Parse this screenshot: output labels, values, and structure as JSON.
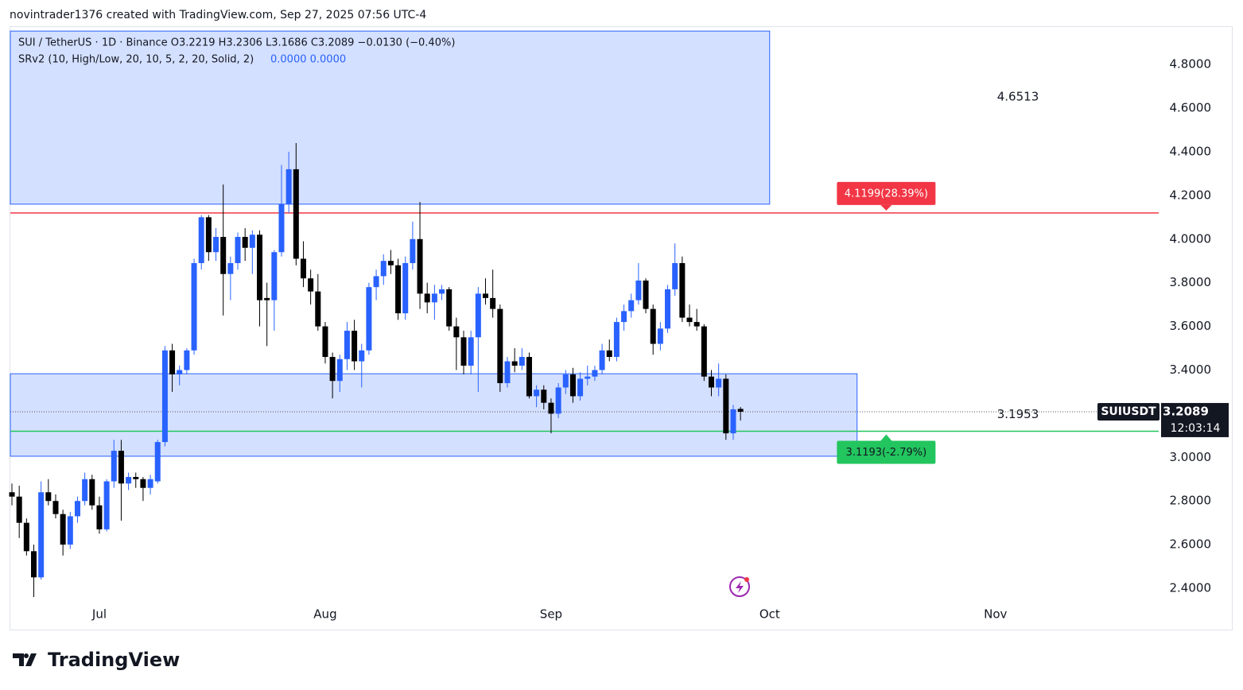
{
  "header": "novintrader1376 created with TradingView.com, Sep 27, 2025 07:56 UTC-4",
  "footer": "TradingView",
  "chart_data": {
    "type": "candlestick",
    "legend_line1": "SUI / TetherUS · 1D · Binance  O3.2219  H3.2306  L3.1686  C3.2089  −0.0130 (−0.40%)",
    "legend_line2": "SRv2 (10, High/Low, 20, 10, 5, 2, 20, Solid, 2)",
    "legend_values": "0.0000  0.0000",
    "xlim": [
      -0.22,
      157.4
    ],
    "xticks": [
      {
        "value": 12,
        "label": "Jul"
      },
      {
        "value": 43,
        "label": "Aug"
      },
      {
        "value": 74,
        "label": "Sep"
      },
      {
        "value": 104,
        "label": "Oct"
      },
      {
        "value": 135,
        "label": "Nov"
      }
    ],
    "ylim": [
      2.218,
      4.968
    ],
    "yticks": [
      {
        "value": 2.4,
        "label": "2.4000"
      },
      {
        "value": 2.6,
        "label": "2.6000"
      },
      {
        "value": 2.8,
        "label": "2.8000"
      },
      {
        "value": 3.0,
        "label": "3.0000"
      },
      {
        "value": 3.2,
        "label": "3.2000"
      },
      {
        "value": 3.4,
        "label": "3.4000"
      },
      {
        "value": 3.6,
        "label": "3.6000"
      },
      {
        "value": 3.8,
        "label": "3.8000"
      },
      {
        "value": 4.0,
        "label": "4.0000"
      },
      {
        "value": 4.2,
        "label": "4.2000"
      },
      {
        "value": 4.4,
        "label": "4.4000"
      },
      {
        "value": 4.6,
        "label": "4.6000"
      },
      {
        "value": 4.8,
        "label": "4.8000"
      }
    ],
    "up_color": "#2962ff",
    "down_color": "#000000",
    "open": [
      2.84,
      2.82,
      2.7,
      2.57,
      2.45,
      2.84,
      2.8,
      2.74,
      2.6,
      2.73,
      2.8,
      2.9,
      2.78,
      2.67,
      2.89,
      3.03,
      2.88,
      2.91,
      2.9,
      2.86,
      2.89,
      3.07,
      3.49,
      3.38,
      3.4,
      3.49,
      3.89,
      4.1,
      3.94,
      4.01,
      3.84,
      3.89,
      4.01,
      3.96,
      4.02,
      3.73,
      3.72,
      3.94,
      4.16,
      4.32,
      3.91,
      3.82,
      3.76,
      3.6,
      3.46,
      3.35,
      3.45,
      3.58,
      3.44,
      3.49,
      3.78,
      3.83,
      3.9,
      3.88,
      3.66,
      3.89,
      4.0,
      3.75,
      3.71,
      3.75,
      3.77,
      3.6,
      3.55,
      3.42,
      3.55,
      3.75,
      3.73,
      3.68,
      3.34,
      3.44,
      3.42,
      3.46,
      3.28,
      3.31,
      3.25,
      3.2,
      3.32,
      3.38,
      3.28,
      3.36,
      3.37,
      3.4,
      3.49,
      3.46,
      3.62,
      3.67,
      3.72,
      3.81,
      3.68,
      3.52,
      3.59,
      3.77,
      3.89,
      3.64,
      3.62,
      3.6,
      3.37,
      3.32,
      3.36,
      3.11,
      3.2219
    ],
    "high": [
      2.88,
      2.87,
      2.72,
      2.6,
      2.89,
      2.9,
      2.83,
      2.76,
      2.75,
      2.82,
      2.93,
      2.92,
      2.82,
      2.9,
      3.08,
      3.08,
      2.93,
      2.93,
      2.91,
      2.92,
      3.08,
      3.51,
      3.52,
      3.42,
      3.5,
      3.91,
      4.11,
      4.11,
      4.05,
      4.25,
      3.92,
      4.03,
      4.05,
      4.04,
      4.04,
      3.8,
      3.95,
      4.34,
      4.4,
      4.44,
      3.99,
      3.86,
      3.84,
      3.62,
      3.48,
      3.47,
      3.62,
      3.63,
      3.52,
      3.8,
      3.86,
      3.93,
      3.95,
      3.91,
      3.92,
      4.08,
      4.17,
      3.8,
      3.79,
      3.79,
      3.78,
      3.64,
      3.58,
      3.58,
      3.78,
      3.82,
      3.86,
      3.7,
      3.46,
      3.5,
      3.5,
      3.48,
      3.33,
      3.33,
      3.27,
      3.34,
      3.4,
      3.41,
      3.39,
      3.42,
      3.42,
      3.52,
      3.54,
      3.64,
      3.7,
      3.75,
      3.89,
      3.82,
      3.7,
      3.62,
      3.79,
      3.98,
      3.92,
      3.7,
      3.68,
      3.61,
      3.4,
      3.43,
      3.38,
      3.24,
      3.2306
    ],
    "low": [
      2.78,
      2.63,
      2.55,
      2.36,
      2.44,
      2.78,
      2.72,
      2.55,
      2.58,
      2.7,
      2.78,
      2.76,
      2.65,
      2.66,
      2.86,
      2.71,
      2.85,
      2.86,
      2.8,
      2.83,
      2.88,
      3.05,
      3.3,
      3.33,
      3.38,
      3.47,
      3.86,
      3.9,
      3.9,
      3.65,
      3.72,
      3.86,
      3.9,
      3.84,
      3.6,
      3.51,
      3.58,
      3.92,
      4.12,
      3.88,
      3.78,
      3.7,
      3.58,
      3.43,
      3.27,
      3.3,
      3.4,
      3.4,
      3.32,
      3.47,
      3.72,
      3.79,
      3.84,
      3.63,
      3.63,
      3.86,
      3.68,
      3.66,
      3.63,
      3.72,
      3.58,
      3.4,
      3.38,
      3.38,
      3.3,
      3.7,
      3.64,
      3.3,
      3.32,
      3.39,
      3.4,
      3.27,
      3.23,
      3.22,
      3.11,
      3.18,
      3.29,
      3.25,
      3.26,
      3.33,
      3.35,
      3.38,
      3.44,
      3.44,
      3.58,
      3.64,
      3.7,
      3.66,
      3.47,
      3.49,
      3.57,
      3.74,
      3.62,
      3.6,
      3.58,
      3.35,
      3.28,
      3.28,
      3.08,
      3.08,
      3.1686
    ],
    "close": [
      2.82,
      2.7,
      2.57,
      2.45,
      2.84,
      2.8,
      2.74,
      2.6,
      2.73,
      2.8,
      2.9,
      2.78,
      2.67,
      2.89,
      3.03,
      2.88,
      2.91,
      2.9,
      2.86,
      2.9,
      3.07,
      3.49,
      3.38,
      3.4,
      3.49,
      3.89,
      4.1,
      3.94,
      4.01,
      3.84,
      3.89,
      4.01,
      3.96,
      4.02,
      3.72,
      3.72,
      3.94,
      4.16,
      4.32,
      3.91,
      3.82,
      3.76,
      3.6,
      3.46,
      3.35,
      3.45,
      3.58,
      3.44,
      3.49,
      3.78,
      3.83,
      3.9,
      3.88,
      3.66,
      3.89,
      4.0,
      3.75,
      3.71,
      3.75,
      3.77,
      3.6,
      3.55,
      3.42,
      3.55,
      3.75,
      3.73,
      3.68,
      3.34,
      3.44,
      3.42,
      3.46,
      3.28,
      3.31,
      3.25,
      3.2,
      3.32,
      3.38,
      3.28,
      3.36,
      3.37,
      3.4,
      3.49,
      3.46,
      3.62,
      3.67,
      3.72,
      3.81,
      3.68,
      3.52,
      3.59,
      3.77,
      3.89,
      3.64,
      3.62,
      3.6,
      3.37,
      3.32,
      3.36,
      3.11,
      3.22,
      3.2089
    ],
    "zones": [
      {
        "top": 4.953,
        "bottom": 4.16,
        "x_end": 104
      },
      {
        "top": 3.383,
        "bottom": 3.005,
        "x_end": 116
      }
    ],
    "levels": [
      {
        "value": 4.1199,
        "label": "4.1199(28.39%)",
        "color": "#f23645"
      },
      {
        "value": 3.1193,
        "label": "3.1193(-2.79%)",
        "color": "#22c55e"
      }
    ],
    "price_notes": [
      4.6513,
      3.1953
    ],
    "current": {
      "symbol": "SUIUSDT",
      "price": 3.2089,
      "countdown": "12:03:14"
    }
  }
}
